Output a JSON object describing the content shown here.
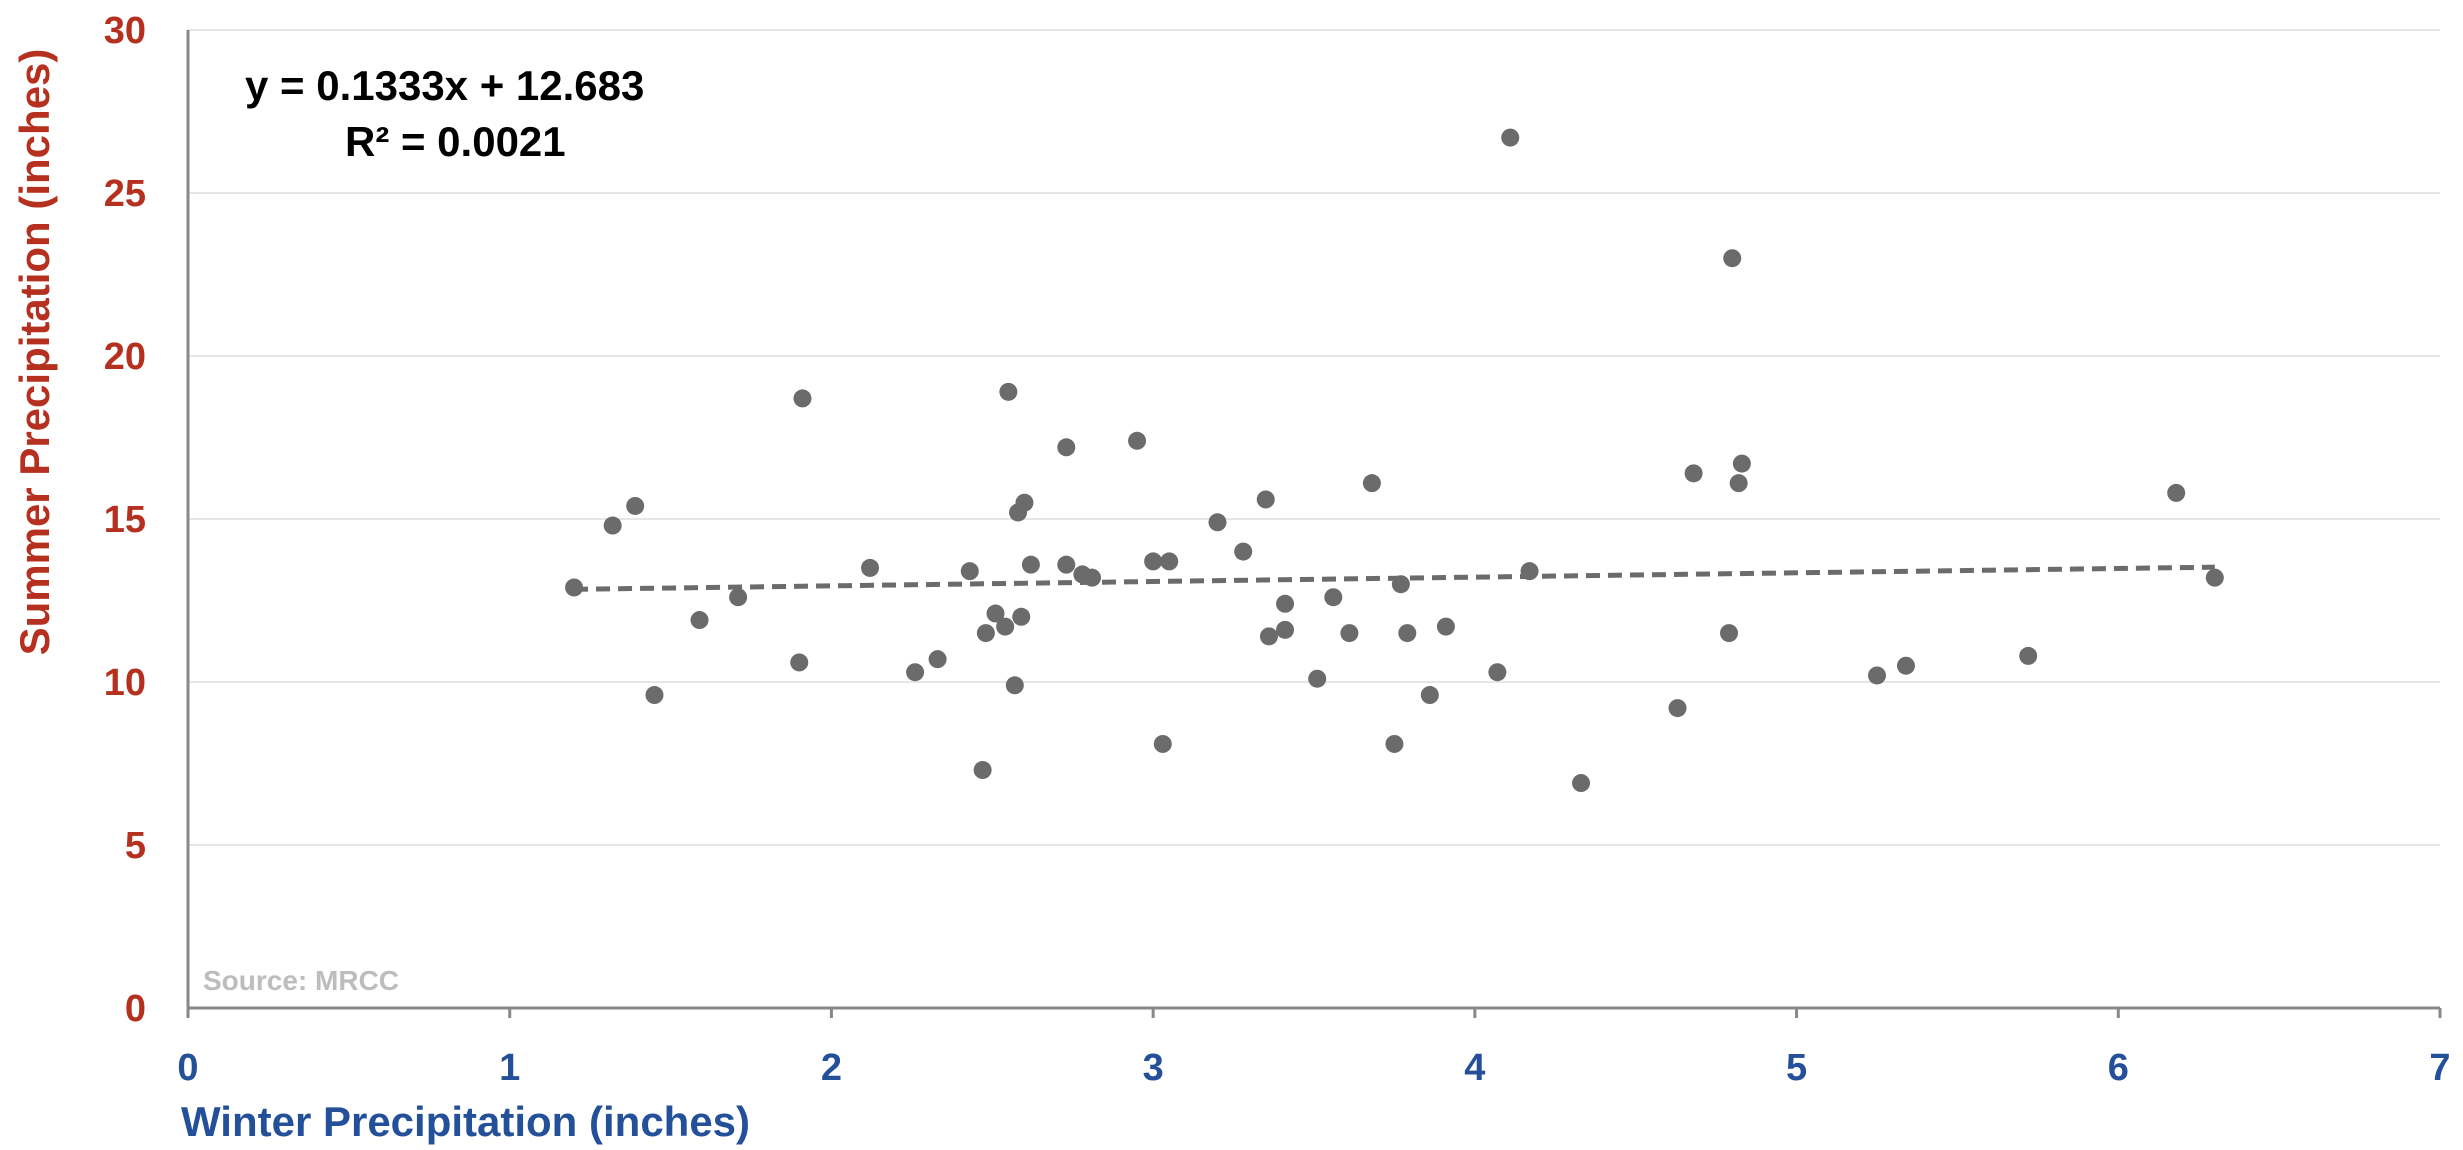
{
  "chart_data": {
    "type": "scatter",
    "xlabel": "Winter Precipitation (inches)",
    "ylabel": "Summer Precipitation (inches)",
    "xlim": [
      0,
      7
    ],
    "ylim": [
      0,
      30
    ],
    "x_ticks": [
      0,
      1,
      2,
      3,
      4,
      5,
      6,
      7
    ],
    "y_ticks": [
      0,
      5,
      10,
      15,
      20,
      25,
      30
    ],
    "grid": "horizontal",
    "legend": "none",
    "trendline": {
      "type": "linear",
      "slope": 0.1333,
      "intercept": 12.683,
      "x_range": [
        1.2,
        6.3
      ],
      "style": "dashed"
    },
    "annotations": {
      "equation": "y = 0.1333x + 12.683",
      "r_squared": "R² = 0.0021",
      "source": "Source: MRCC"
    },
    "colors": {
      "points": "#6b6b6b",
      "trendline": "#6b6b6b",
      "y_axis_text": "#b5301f",
      "x_axis_text": "#24509a",
      "grid": "#e6e6e6",
      "axis": "#888888"
    },
    "points": [
      {
        "x": 1.2,
        "y": 12.9
      },
      {
        "x": 1.32,
        "y": 14.8
      },
      {
        "x": 1.39,
        "y": 15.4
      },
      {
        "x": 1.45,
        "y": 9.6
      },
      {
        "x": 1.59,
        "y": 11.9
      },
      {
        "x": 1.71,
        "y": 12.6
      },
      {
        "x": 1.9,
        "y": 10.6
      },
      {
        "x": 1.91,
        "y": 18.7
      },
      {
        "x": 2.12,
        "y": 13.5
      },
      {
        "x": 2.26,
        "y": 10.3
      },
      {
        "x": 2.33,
        "y": 10.7
      },
      {
        "x": 2.43,
        "y": 13.4
      },
      {
        "x": 2.47,
        "y": 7.3
      },
      {
        "x": 2.48,
        "y": 11.5
      },
      {
        "x": 2.51,
        "y": 12.1
      },
      {
        "x": 2.54,
        "y": 11.7
      },
      {
        "x": 2.55,
        "y": 18.9
      },
      {
        "x": 2.57,
        "y": 9.9
      },
      {
        "x": 2.58,
        "y": 15.2
      },
      {
        "x": 2.59,
        "y": 12.0
      },
      {
        "x": 2.6,
        "y": 15.5
      },
      {
        "x": 2.62,
        "y": 13.6
      },
      {
        "x": 2.73,
        "y": 17.2
      },
      {
        "x": 2.73,
        "y": 13.6
      },
      {
        "x": 2.78,
        "y": 13.3
      },
      {
        "x": 2.81,
        "y": 13.2
      },
      {
        "x": 2.95,
        "y": 17.4
      },
      {
        "x": 3.0,
        "y": 13.7
      },
      {
        "x": 3.03,
        "y": 8.1
      },
      {
        "x": 3.05,
        "y": 13.7
      },
      {
        "x": 3.2,
        "y": 14.9
      },
      {
        "x": 3.28,
        "y": 14.0
      },
      {
        "x": 3.35,
        "y": 15.6
      },
      {
        "x": 3.36,
        "y": 11.4
      },
      {
        "x": 3.41,
        "y": 12.4
      },
      {
        "x": 3.41,
        "y": 11.6
      },
      {
        "x": 3.51,
        "y": 10.1
      },
      {
        "x": 3.56,
        "y": 12.6
      },
      {
        "x": 3.61,
        "y": 11.5
      },
      {
        "x": 3.68,
        "y": 16.1
      },
      {
        "x": 3.75,
        "y": 8.1
      },
      {
        "x": 3.77,
        "y": 13.0
      },
      {
        "x": 3.79,
        "y": 11.5
      },
      {
        "x": 3.86,
        "y": 9.6
      },
      {
        "x": 3.91,
        "y": 11.7
      },
      {
        "x": 4.07,
        "y": 10.3
      },
      {
        "x": 4.11,
        "y": 26.7
      },
      {
        "x": 4.17,
        "y": 13.4
      },
      {
        "x": 4.33,
        "y": 6.9
      },
      {
        "x": 4.63,
        "y": 9.2
      },
      {
        "x": 4.68,
        "y": 16.4
      },
      {
        "x": 4.79,
        "y": 11.5
      },
      {
        "x": 4.8,
        "y": 23.0
      },
      {
        "x": 4.82,
        "y": 16.1
      },
      {
        "x": 4.83,
        "y": 16.7
      },
      {
        "x": 5.25,
        "y": 10.2
      },
      {
        "x": 5.34,
        "y": 10.5
      },
      {
        "x": 5.72,
        "y": 10.8
      },
      {
        "x": 6.18,
        "y": 15.8
      },
      {
        "x": 6.3,
        "y": 13.2
      }
    ]
  }
}
